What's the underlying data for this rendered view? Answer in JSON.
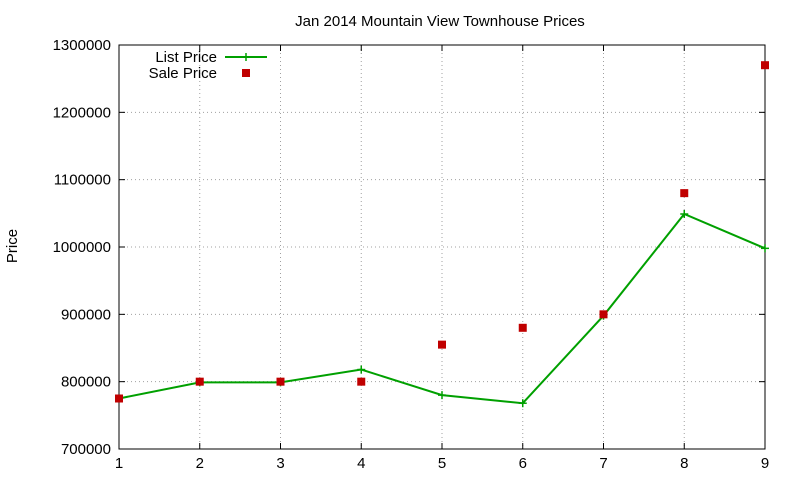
{
  "chart_data": {
    "type": "line",
    "title": "Jan 2014 Mountain View Townhouse Prices",
    "xlabel": "",
    "ylabel": "Price",
    "x": [
      1,
      2,
      3,
      4,
      5,
      6,
      7,
      8,
      9
    ],
    "xlim": [
      1,
      9
    ],
    "ylim": [
      700000,
      1300000
    ],
    "yticks": [
      700000,
      800000,
      900000,
      1000000,
      1100000,
      1200000,
      1300000
    ],
    "xticks": [
      1,
      2,
      3,
      4,
      5,
      6,
      7,
      8,
      9
    ],
    "grid": true,
    "legend_position": "top-left",
    "series": [
      {
        "name": "List Price",
        "style": "line-with-plus-markers",
        "color": "#00a000",
        "values": [
          775000,
          799000,
          799000,
          818000,
          780000,
          768000,
          898000,
          1049000,
          998000
        ]
      },
      {
        "name": "Sale Price",
        "style": "square-markers",
        "color": "#c00000",
        "values": [
          775000,
          800000,
          800000,
          800000,
          855000,
          880000,
          900000,
          1080000,
          1270000
        ]
      }
    ]
  }
}
